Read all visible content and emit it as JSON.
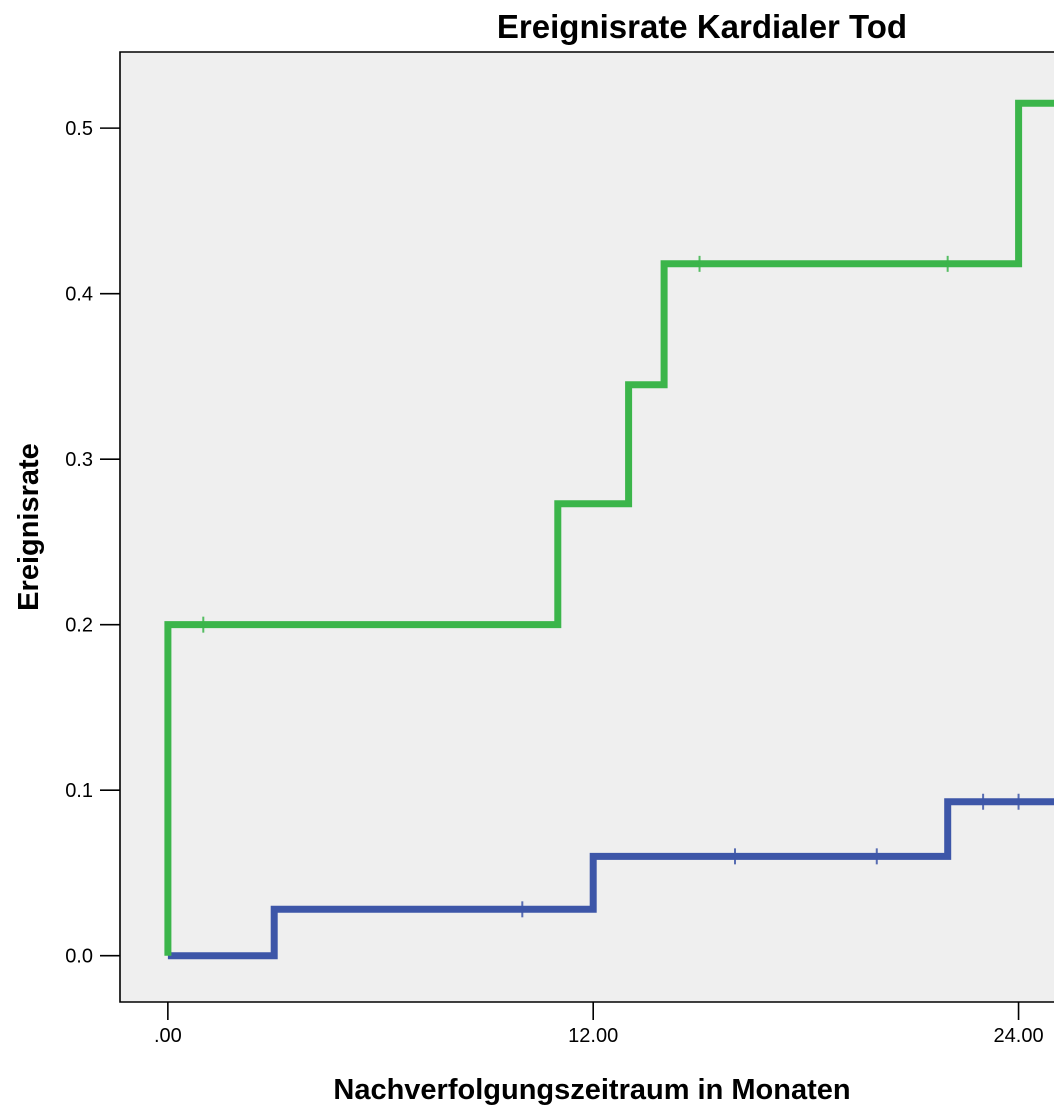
{
  "chart_data": {
    "type": "line",
    "step": true,
    "title": "Ereignisrate Kardialer Tod",
    "xlabel": "Nachverfolgungszeitraum in Monaten",
    "ylabel": "Ereignisrate",
    "xlim": [
      -1.35,
      25.0
    ],
    "ylim": [
      -0.028,
      0.546
    ],
    "x_ticks": [
      0,
      12,
      24
    ],
    "x_tick_labels": [
      ".00",
      "12.00",
      "24.00"
    ],
    "y_ticks": [
      0.0,
      0.1,
      0.2,
      0.3,
      0.4,
      0.5
    ],
    "y_tick_labels": [
      "0.0",
      "0.1",
      "0.2",
      "0.3",
      "0.4",
      "0.5"
    ],
    "grid": false,
    "plot_background": "#efefef",
    "series": [
      {
        "color": "#3bb54a",
        "points": [
          [
            0,
            0
          ],
          [
            0,
            0.2
          ],
          [
            11,
            0.2
          ],
          [
            11,
            0.273
          ],
          [
            13,
            0.273
          ],
          [
            13,
            0.345
          ],
          [
            14,
            0.345
          ],
          [
            14,
            0.418
          ],
          [
            24,
            0.418
          ],
          [
            24,
            0.515
          ],
          [
            25,
            0.515
          ]
        ],
        "censored_x": [
          1,
          15,
          22
        ]
      },
      {
        "color": "#3d56a8",
        "points": [
          [
            0,
            0
          ],
          [
            3,
            0
          ],
          [
            3,
            0.028
          ],
          [
            12,
            0.028
          ],
          [
            12,
            0.06
          ],
          [
            22,
            0.06
          ],
          [
            22,
            0.093
          ],
          [
            25,
            0.093
          ]
        ],
        "censored_x": [
          10,
          16,
          20,
          23,
          24
        ]
      }
    ]
  }
}
